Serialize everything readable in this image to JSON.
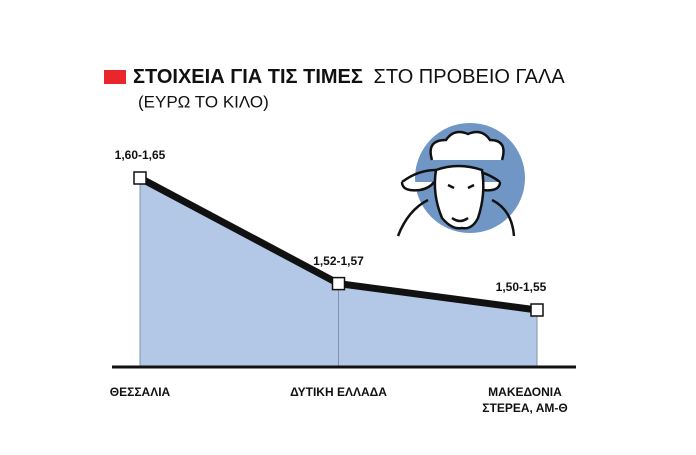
{
  "chart_data": {
    "type": "area",
    "title": {
      "bold": "ΣΤΟΙΧΕΙΑ ΓΙΑ ΤΙΣ ΤΙΜΕΣ",
      "regular": "ΣΤΟ ΠΡΟΒΕΙΟ ΓΑΛΑ"
    },
    "subtitle": "(ΕΥΡΩ ΤΟ ΚΙΛΟ)",
    "categories": [
      [
        "ΘΕΣΣΑΛΙΑ"
      ],
      [
        "ΔΥΤΙΚΗ ΕΛΛΑΔΑ"
      ],
      [
        "ΜΑΚΕΔΟΝΙΑ",
        "ΣΤΕΡΕΑ, ΑΜ-Θ"
      ]
    ],
    "values": [
      [
        1.6,
        1.65
      ],
      [
        1.52,
        1.57
      ],
      [
        1.5,
        1.55
      ]
    ],
    "value_labels": [
      "1,60-1,65",
      "1,52-1,57",
      "1,50-1,55"
    ],
    "color": "#b3c8e6",
    "line_color": "#111111",
    "title_marker_color": "#e8262b"
  }
}
